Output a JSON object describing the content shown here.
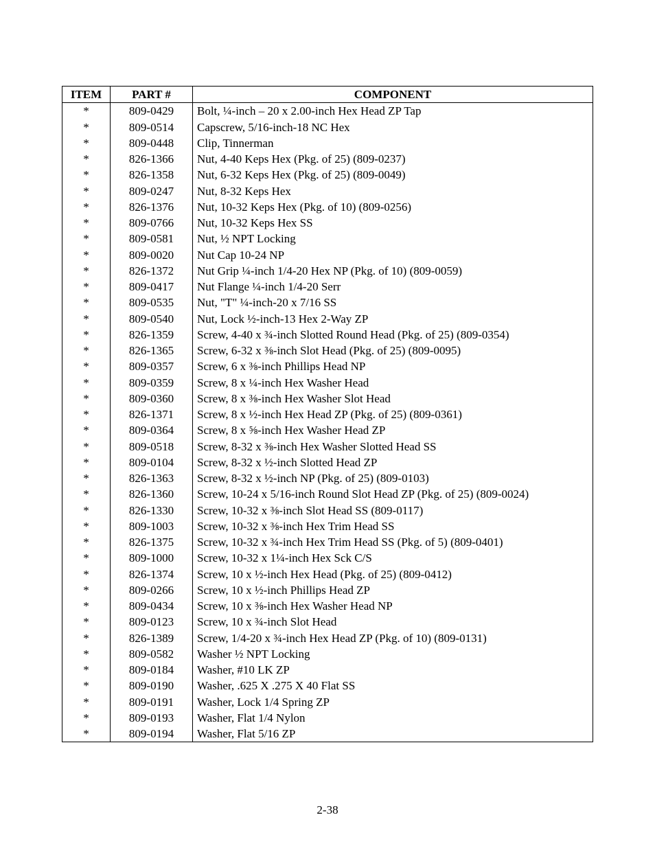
{
  "table": {
    "headers": {
      "item": "ITEM",
      "part": "PART #",
      "component": "COMPONENT"
    },
    "font_size_pt": 12,
    "border_color": "#000000",
    "rows": [
      {
        "item": "*",
        "part": "809-0429",
        "component": "Bolt, ¼-inch – 20 x 2.00-inch Hex Head ZP Tap"
      },
      {
        "item": "*",
        "part": "809-0514",
        "component": "Capscrew, 5/16-inch-18 NC Hex"
      },
      {
        "item": "*",
        "part": "809-0448",
        "component": "Clip, Tinnerman"
      },
      {
        "item": "*",
        "part": "826-1366",
        "component": "Nut, 4-40 Keps Hex (Pkg. of 25) (809-0237)"
      },
      {
        "item": "*",
        "part": "826-1358",
        "component": "Nut, 6-32 Keps Hex (Pkg. of 25) (809-0049)"
      },
      {
        "item": "*",
        "part": "809-0247",
        "component": "Nut, 8-32 Keps Hex"
      },
      {
        "item": "*",
        "part": "826-1376",
        "component": "Nut, 10-32 Keps Hex (Pkg. of 10) (809-0256)"
      },
      {
        "item": "*",
        "part": "809-0766",
        "component": "Nut, 10-32 Keps Hex SS"
      },
      {
        "item": "*",
        "part": "809-0581",
        "component": "Nut, ½ NPT Locking"
      },
      {
        "item": "*",
        "part": "809-0020",
        "component": "Nut Cap 10-24 NP"
      },
      {
        "item": "*",
        "part": "826-1372",
        "component": "Nut Grip ¼-inch 1/4-20 Hex NP (Pkg. of 10) (809-0059)"
      },
      {
        "item": "*",
        "part": "809-0417",
        "component": "Nut Flange ¼-inch 1/4-20 Serr"
      },
      {
        "item": "*",
        "part": "809-0535",
        "component": "Nut, \"T\" ¼-inch-20 x 7/16 SS"
      },
      {
        "item": "*",
        "part": "809-0540",
        "component": "Nut, Lock ½-inch-13 Hex 2-Way ZP"
      },
      {
        "item": "*",
        "part": "826-1359",
        "component": "Screw, 4-40 x ¾-inch Slotted Round Head (Pkg. of 25) (809-0354)"
      },
      {
        "item": "*",
        "part": "826-1365",
        "component": "Screw, 6-32 x ⅜-inch Slot Head (Pkg. of 25) (809-0095)"
      },
      {
        "item": "*",
        "part": "809-0357",
        "component": "Screw, 6 x ⅜-inch Phillips Head NP"
      },
      {
        "item": "*",
        "part": "809-0359",
        "component": "Screw, 8 x ¼-inch Hex Washer Head"
      },
      {
        "item": "*",
        "part": "809-0360",
        "component": "Screw, 8 x ⅜-inch Hex Washer Slot Head"
      },
      {
        "item": "*",
        "part": "826-1371",
        "component": "Screw, 8 x ½-inch Hex Head ZP (Pkg. of 25) (809-0361)"
      },
      {
        "item": "*",
        "part": "809-0364",
        "component": "Screw, 8 x ⅝-inch Hex Washer Head ZP"
      },
      {
        "item": "*",
        "part": "809-0518",
        "component": "Screw, 8-32 x ⅜-inch Hex Washer Slotted Head SS"
      },
      {
        "item": "*",
        "part": "809-0104",
        "component": "Screw, 8-32 x ½-inch Slotted Head ZP"
      },
      {
        "item": "*",
        "part": "826-1363",
        "component": "Screw, 8-32 x ½-inch NP (Pkg. of 25) (809-0103)"
      },
      {
        "item": "*",
        "part": "826-1360",
        "component": "Screw, 10-24 x 5/16-inch Round Slot Head ZP (Pkg. of 25) (809-0024)"
      },
      {
        "item": "*",
        "part": "826-1330",
        "component": "Screw, 10-32 x ⅜-inch Slot Head SS (809-0117)"
      },
      {
        "item": "*",
        "part": "809-1003",
        "component": "Screw, 10-32 x ⅜-inch Hex Trim Head SS"
      },
      {
        "item": "*",
        "part": "826-1375",
        "component": "Screw, 10-32 x ¾-inch Hex Trim Head SS (Pkg. of 5) (809-0401)"
      },
      {
        "item": "*",
        "part": "809-1000",
        "component": "Screw, 10-32 x 1¼-inch Hex Sck C/S"
      },
      {
        "item": "*",
        "part": "826-1374",
        "component": "Screw, 10 x ½-inch Hex Head (Pkg. of 25) (809-0412)"
      },
      {
        "item": "*",
        "part": "809-0266",
        "component": "Screw, 10 x ½-inch Phillips Head ZP"
      },
      {
        "item": "*",
        "part": "809-0434",
        "component": "Screw, 10 x ⅜-inch Hex Washer Head NP"
      },
      {
        "item": "*",
        "part": "809-0123",
        "component": "Screw, 10 x ¾-inch Slot Head"
      },
      {
        "item": "*",
        "part": "826-1389",
        "component": "Screw, 1/4-20 x ¾-inch Hex Head ZP (Pkg. of 10) (809-0131)"
      },
      {
        "item": "*",
        "part": "809-0582",
        "component": "Washer ½ NPT Locking"
      },
      {
        "item": "*",
        "part": "809-0184",
        "component": "Washer, #10 LK ZP"
      },
      {
        "item": "*",
        "part": "809-0190",
        "component": "Washer, .625 X .275 X 40 Flat SS"
      },
      {
        "item": "*",
        "part": "809-0191",
        "component": "Washer, Lock 1/4 Spring ZP"
      },
      {
        "item": "*",
        "part": "809-0193",
        "component": "Washer, Flat 1/4 Nylon"
      },
      {
        "item": "*",
        "part": "809-0194",
        "component": "Washer, Flat 5/16  ZP"
      }
    ]
  },
  "page_number": "2-38"
}
